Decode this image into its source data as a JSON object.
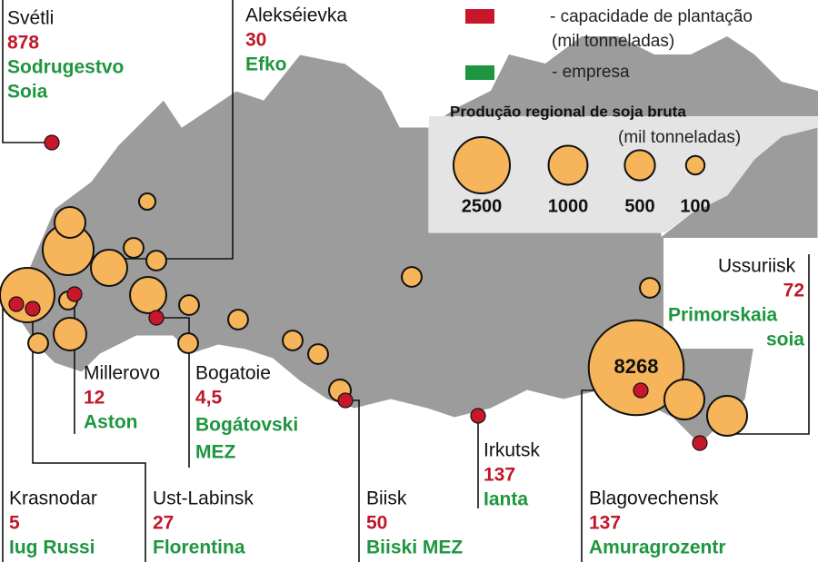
{
  "legend": {
    "capacity_label": "- capacidade de plantação",
    "capacity_unit": "(mil tonneladas)",
    "company_label": "- empresa",
    "production_title": "Produção regional de soja bruta",
    "production_unit": "(mil tonneladas)",
    "sizes": [
      2500,
      1000,
      500,
      100
    ]
  },
  "callouts": [
    {
      "place": "Svétli",
      "capacity": 878,
      "company": [
        "Sodrugestvo",
        "Soia"
      ]
    },
    {
      "place": "Alekséievka",
      "capacity": 30,
      "company": [
        "Efko"
      ]
    },
    {
      "place": "Ussuriisk",
      "capacity": 72,
      "company": [
        "Primorskaia",
        "soia"
      ]
    },
    {
      "place": "Millerovo",
      "capacity": 12,
      "company": [
        "Aston"
      ]
    },
    {
      "place": "Bogatoie",
      "capacity": {
        "value": 4.5,
        "label": "4,5"
      },
      "company": [
        "Bogátovski",
        "MEZ"
      ]
    },
    {
      "place": "Irkutsk",
      "capacity": 137,
      "company": [
        "Ianta"
      ]
    },
    {
      "place": "Krasnodar",
      "capacity": 5,
      "company": [
        "Iug Russi"
      ]
    },
    {
      "place": "Ust-Labinsk",
      "capacity": 27,
      "company": [
        "Florentina"
      ]
    },
    {
      "place": "Biisk",
      "capacity": 50,
      "company": [
        "Biiski MEZ"
      ]
    },
    {
      "place": "Blagovechensk",
      "capacity": 137,
      "company": [
        "Amuragrozentr"
      ]
    }
  ],
  "regions": [
    530,
    1960,
    830,
    2310,
    625,
    830,
    60,
    130,
    130,
    90,
    130,
    130,
    130,
    130,
    130,
    130,
    130,
    180,
    130,
    8268,
    1070,
    1070
  ],
  "highlighted_region": 19
}
